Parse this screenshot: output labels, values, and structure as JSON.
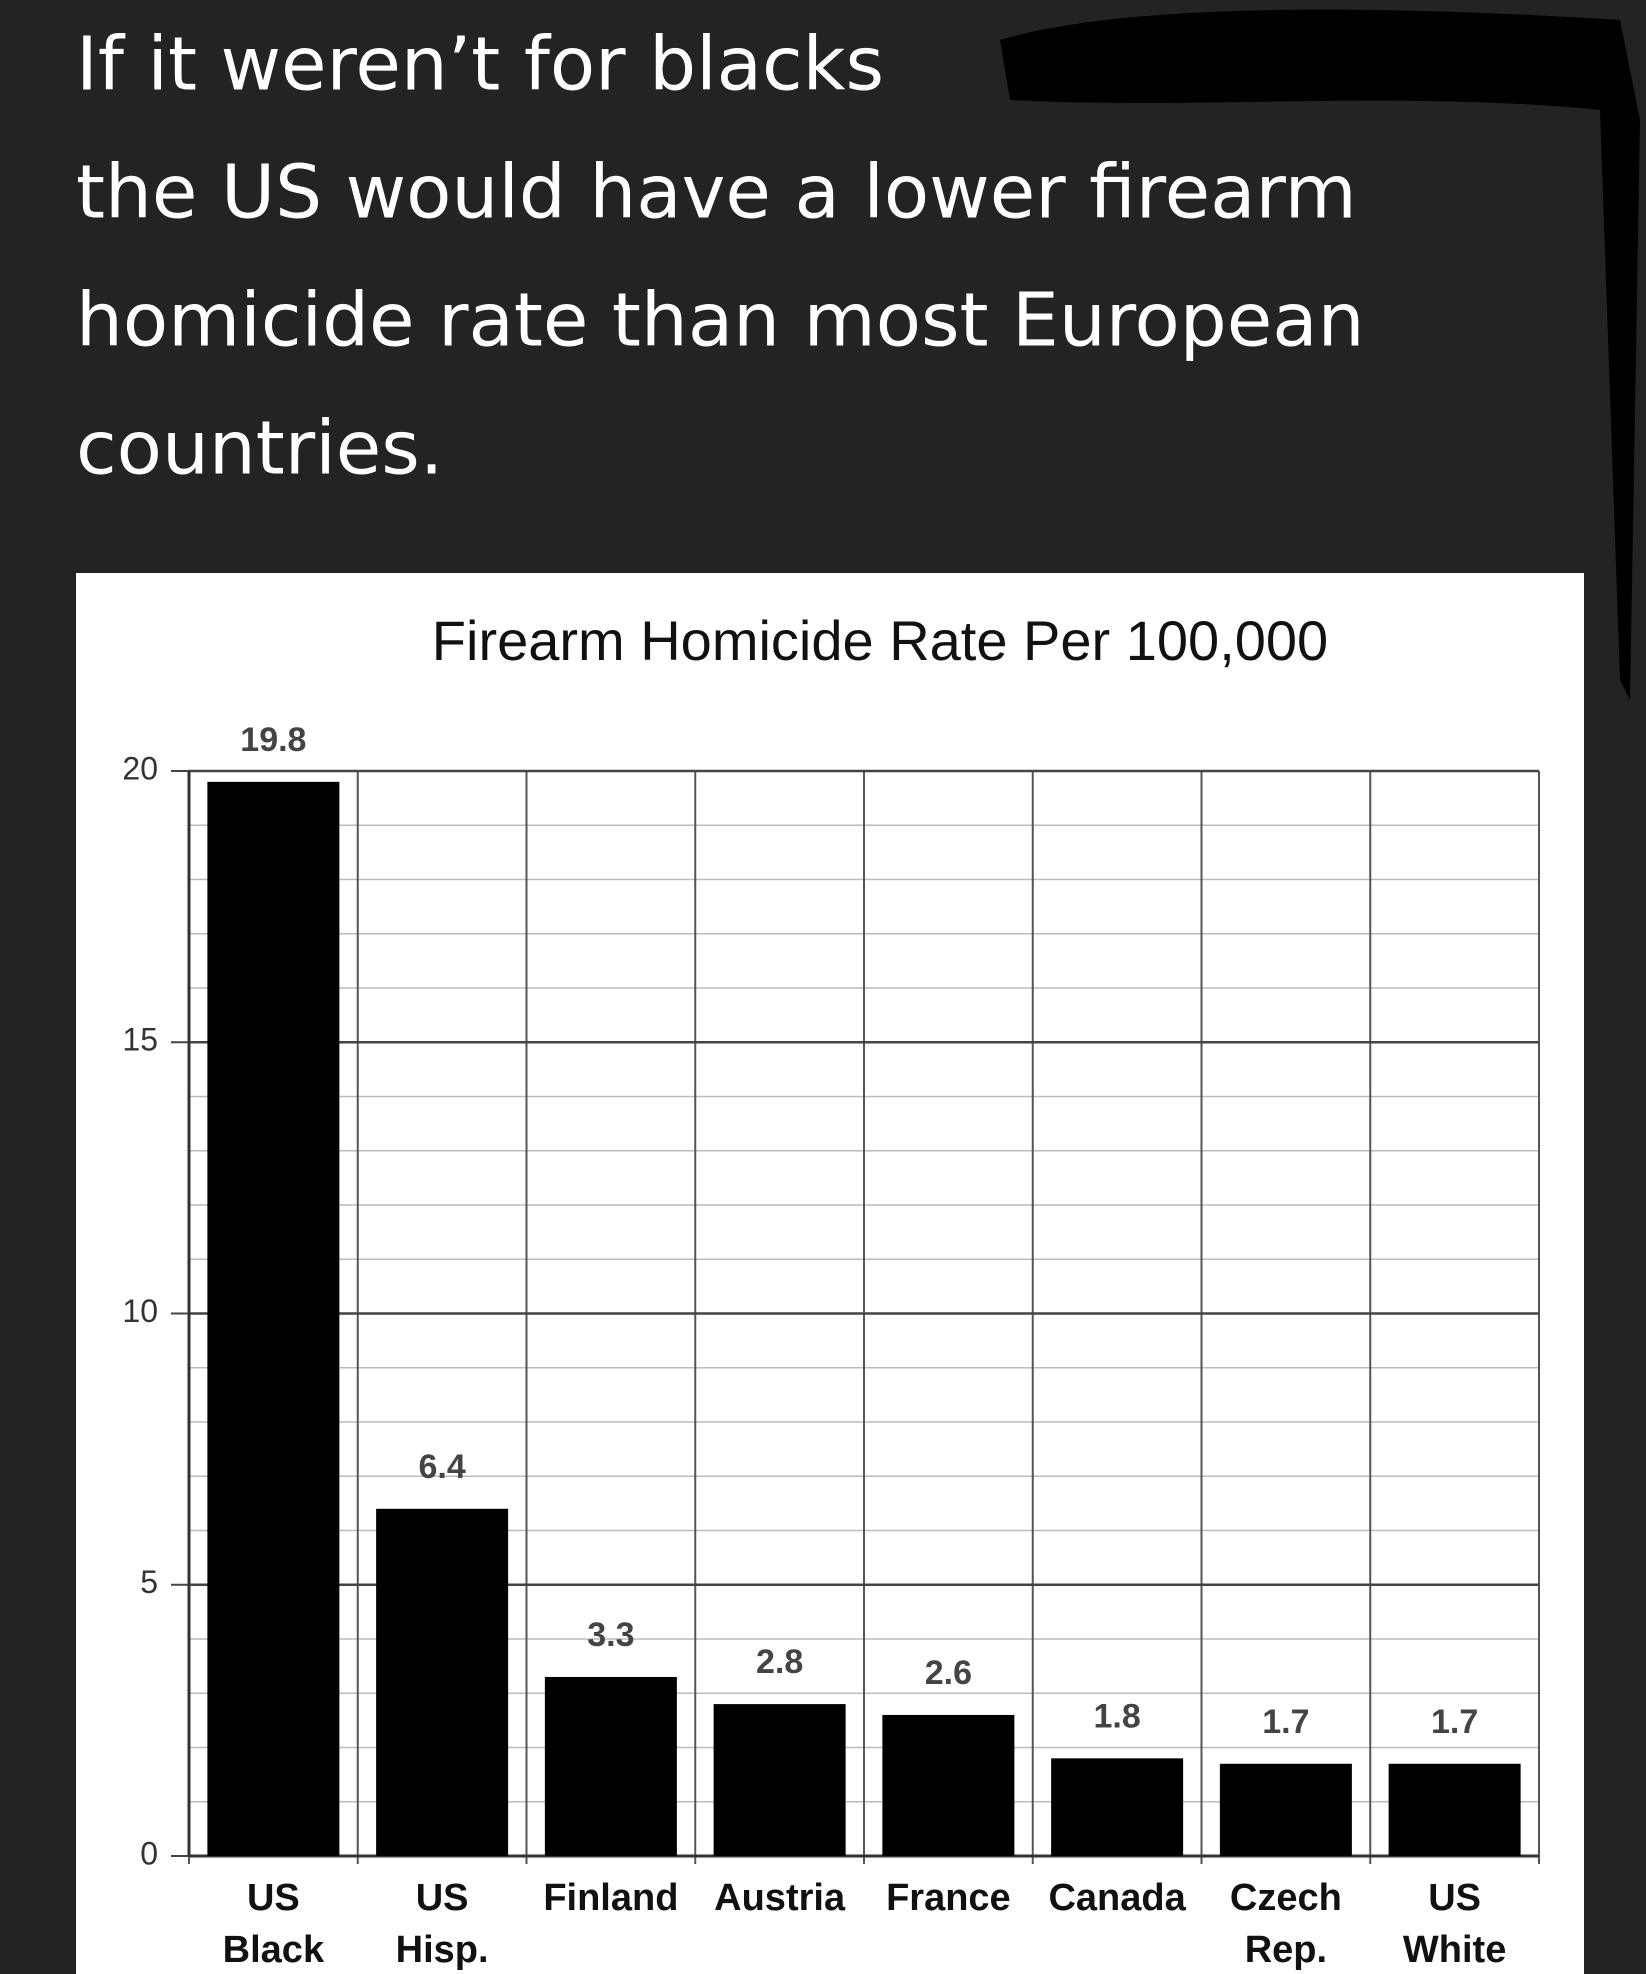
{
  "caption_lines": [
    "If it weren’t for blacks",
    "the US would have a lower firearm",
    "homicide rate than most European",
    "countries."
  ],
  "chart_data": {
    "type": "bar",
    "title": "Firearm Homicide Rate Per 100,000",
    "categories": [
      "US Black",
      "US Hisp.",
      "Finland",
      "Austria",
      "France",
      "Canada",
      "Czech Rep.",
      "US White"
    ],
    "values": [
      19.8,
      6.4,
      3.3,
      2.8,
      2.6,
      1.8,
      1.7,
      1.7
    ],
    "color": "#000000",
    "ylim": [
      0,
      20
    ],
    "yticks": [
      0,
      5,
      10,
      15,
      20
    ],
    "minor_yticks": [
      1,
      2,
      3,
      4,
      6,
      7,
      8,
      9,
      11,
      12,
      13,
      14,
      16,
      17,
      18,
      19
    ],
    "grid": true
  }
}
